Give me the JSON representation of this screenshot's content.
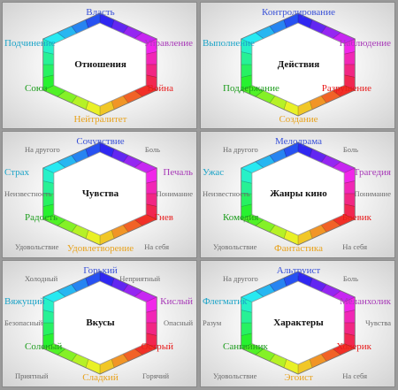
{
  "palette": {
    "top": "#3a52d8",
    "tr": "#a83ab8",
    "br": "#e81c1c",
    "bottom": "#e8a21c",
    "bl": "#1c9c1c",
    "tl": "#1ca4c8",
    "minor": "#6a6a6a"
  },
  "panels": [
    {
      "title": "Отношения",
      "top": "Власть",
      "top_right": "Управление",
      "bottom_right": "Война",
      "bottom": "Нейтралитет",
      "bottom_left": "Союз",
      "top_left": "Подчинение",
      "minor": {}
    },
    {
      "title": "Действия",
      "top": "Контролирование",
      "top_right": "Наблюдение",
      "bottom_right": "Разрушение",
      "bottom": "Создание",
      "bottom_left": "Поддержание",
      "top_left": "Выполнение",
      "minor": {}
    },
    {
      "title": "Чувства",
      "top": "Сочувствие",
      "top_right": "Печаль",
      "bottom_right": "Гнев",
      "bottom": "Удовлетворение",
      "bottom_left": "Радость",
      "top_left": "Страх",
      "minor": {
        "top_left": "На другого",
        "top_right": "Боль",
        "left": "Неизвестность",
        "right": "Понимание",
        "bottom_left": "Удовольствие",
        "bottom_right": "На себя"
      }
    },
    {
      "title": "Жанры кино",
      "top": "Мелодрама",
      "top_right": "Трагедия",
      "bottom_right": "Боевик",
      "bottom": "Фантастика",
      "bottom_left": "Комедия",
      "top_left": "Ужас",
      "minor": {
        "top_left": "На другого",
        "top_right": "Боль",
        "left": "Неизвестность",
        "right": "Понимание",
        "bottom_left": "Удовольствие",
        "bottom_right": "На себя"
      }
    },
    {
      "title": "Вкусы",
      "top": "Горький",
      "top_right": "Кислый",
      "bottom_right": "Острый",
      "bottom": "Сладкий",
      "bottom_left": "Соленый",
      "top_left": "Вяжущий",
      "minor": {
        "top_left": "Холодный",
        "top_right": "Неприятный",
        "left": "Безопасный",
        "right": "Опасный",
        "bottom_left": "Приятный",
        "bottom_right": "Горячий"
      }
    },
    {
      "title": "Характеры",
      "top": "Альтруист",
      "top_right": "Меланхолик",
      "bottom_right": "Холерик",
      "bottom": "Эгоист",
      "bottom_left": "Сангвиник",
      "top_left": "Флегматик",
      "minor": {
        "top_left": "На другого",
        "top_right": "Боль",
        "left": "Разум",
        "right": "Чувства",
        "bottom_left": "Удовольствие",
        "bottom_right": "На себя"
      }
    }
  ]
}
